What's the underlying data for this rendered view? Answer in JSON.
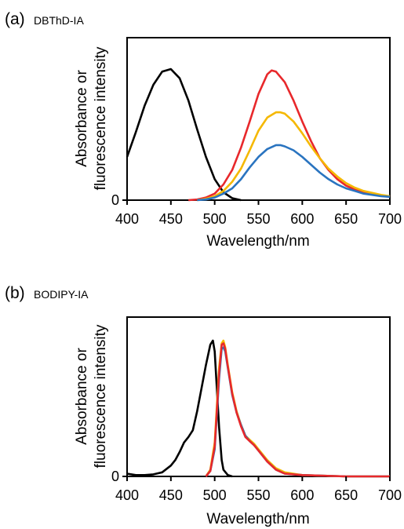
{
  "chart_data": [
    {
      "type": "line",
      "panel_label": "(a)",
      "title": "DBThD-IA",
      "xlabel": "Wavelength/nm",
      "ylabel": [
        "Absorbance or",
        "fluorescence intensity"
      ],
      "xlim": [
        400,
        700
      ],
      "ylim": [
        0,
        1.0
      ],
      "xticks": [
        "400",
        "450",
        "500",
        "550",
        "600",
        "650",
        "700"
      ],
      "yticks": [
        "0"
      ],
      "grid": false,
      "legend": "none",
      "series": [
        {
          "color": "#000000",
          "x": [
            400,
            410,
            420,
            430,
            440,
            450,
            460,
            470,
            480,
            490,
            500,
            510,
            520,
            530
          ],
          "y": [
            0.33,
            0.52,
            0.72,
            0.88,
            0.98,
            1.0,
            0.93,
            0.76,
            0.54,
            0.33,
            0.16,
            0.06,
            0.015,
            0.0
          ]
        },
        {
          "color": "#e8282b",
          "x": [
            470,
            480,
            490,
            500,
            510,
            520,
            530,
            540,
            550,
            560,
            565,
            570,
            580,
            590,
            600,
            610,
            620,
            630,
            640,
            650,
            660,
            670,
            680,
            690,
            700
          ],
          "y": [
            0.0,
            0.005,
            0.02,
            0.05,
            0.12,
            0.23,
            0.4,
            0.6,
            0.81,
            0.96,
            0.99,
            0.98,
            0.9,
            0.76,
            0.6,
            0.45,
            0.32,
            0.23,
            0.16,
            0.11,
            0.08,
            0.06,
            0.045,
            0.035,
            0.025
          ]
        },
        {
          "color": "#f5b800",
          "x": [
            480,
            490,
            500,
            510,
            520,
            530,
            540,
            550,
            560,
            570,
            575,
            580,
            590,
            600,
            610,
            620,
            630,
            640,
            650,
            660,
            670,
            680,
            690,
            700
          ],
          "y": [
            0.0,
            0.01,
            0.03,
            0.07,
            0.14,
            0.24,
            0.38,
            0.53,
            0.63,
            0.67,
            0.67,
            0.66,
            0.6,
            0.51,
            0.41,
            0.32,
            0.24,
            0.18,
            0.13,
            0.095,
            0.07,
            0.055,
            0.04,
            0.03
          ]
        },
        {
          "color": "#2a74c0",
          "x": [
            480,
            490,
            500,
            510,
            520,
            530,
            540,
            550,
            560,
            570,
            575,
            580,
            590,
            600,
            610,
            620,
            630,
            640,
            650,
            660,
            670,
            680,
            690,
            700
          ],
          "y": [
            0.0,
            0.005,
            0.02,
            0.05,
            0.09,
            0.16,
            0.25,
            0.33,
            0.39,
            0.42,
            0.42,
            0.41,
            0.38,
            0.33,
            0.27,
            0.21,
            0.16,
            0.12,
            0.09,
            0.07,
            0.05,
            0.04,
            0.03,
            0.025
          ]
        }
      ]
    },
    {
      "type": "line",
      "panel_label": "(b)",
      "title": "BODIPY-IA",
      "xlabel": "Wavelength/nm",
      "ylabel": [
        "Absorbance or",
        "fluorescence intensity"
      ],
      "xlim": [
        400,
        700
      ],
      "ylim": [
        0,
        1.0
      ],
      "xticks": [
        "400",
        "450",
        "500",
        "550",
        "600",
        "650",
        "700"
      ],
      "yticks": [
        "0"
      ],
      "grid": false,
      "legend": "none",
      "series": [
        {
          "color": "#000000",
          "x": [
            400,
            410,
            420,
            430,
            440,
            450,
            455,
            460,
            465,
            470,
            475,
            480,
            485,
            490,
            495,
            498,
            500,
            502,
            505,
            508,
            510,
            515,
            520
          ],
          "y": [
            0.02,
            0.01,
            0.01,
            0.015,
            0.03,
            0.08,
            0.12,
            0.18,
            0.25,
            0.29,
            0.34,
            0.48,
            0.65,
            0.82,
            0.97,
            1.0,
            0.92,
            0.7,
            0.36,
            0.12,
            0.05,
            0.01,
            0.0
          ]
        },
        {
          "color": "#f5b800",
          "x": [
            490,
            495,
            500,
            505,
            508,
            510,
            512,
            515,
            520,
            525,
            530,
            535,
            540,
            545,
            550,
            560,
            570,
            580,
            600,
            650,
            700
          ],
          "y": [
            0.0,
            0.05,
            0.25,
            0.8,
            0.98,
            1.0,
            0.95,
            0.82,
            0.62,
            0.48,
            0.38,
            0.3,
            0.27,
            0.24,
            0.2,
            0.12,
            0.06,
            0.03,
            0.01,
            0.0,
            0.0
          ]
        },
        {
          "color": "#2a74c0",
          "x": [
            490,
            495,
            500,
            505,
            508,
            510,
            512,
            515,
            520,
            525,
            530,
            535,
            540,
            545,
            550,
            560,
            570,
            580,
            600,
            650,
            700
          ],
          "y": [
            0.0,
            0.04,
            0.2,
            0.72,
            0.94,
            0.95,
            0.92,
            0.8,
            0.6,
            0.47,
            0.38,
            0.3,
            0.26,
            0.23,
            0.19,
            0.11,
            0.05,
            0.02,
            0.01,
            0.0,
            0.0
          ]
        },
        {
          "color": "#e8282b",
          "x": [
            490,
            495,
            500,
            505,
            508,
            510,
            512,
            515,
            520,
            525,
            530,
            535,
            540,
            545,
            550,
            560,
            570,
            580,
            600,
            650,
            700
          ],
          "y": [
            0.0,
            0.04,
            0.22,
            0.76,
            0.97,
            0.98,
            0.94,
            0.81,
            0.61,
            0.47,
            0.37,
            0.29,
            0.26,
            0.23,
            0.19,
            0.11,
            0.05,
            0.02,
            0.01,
            0.0,
            0.0
          ]
        }
      ]
    }
  ]
}
